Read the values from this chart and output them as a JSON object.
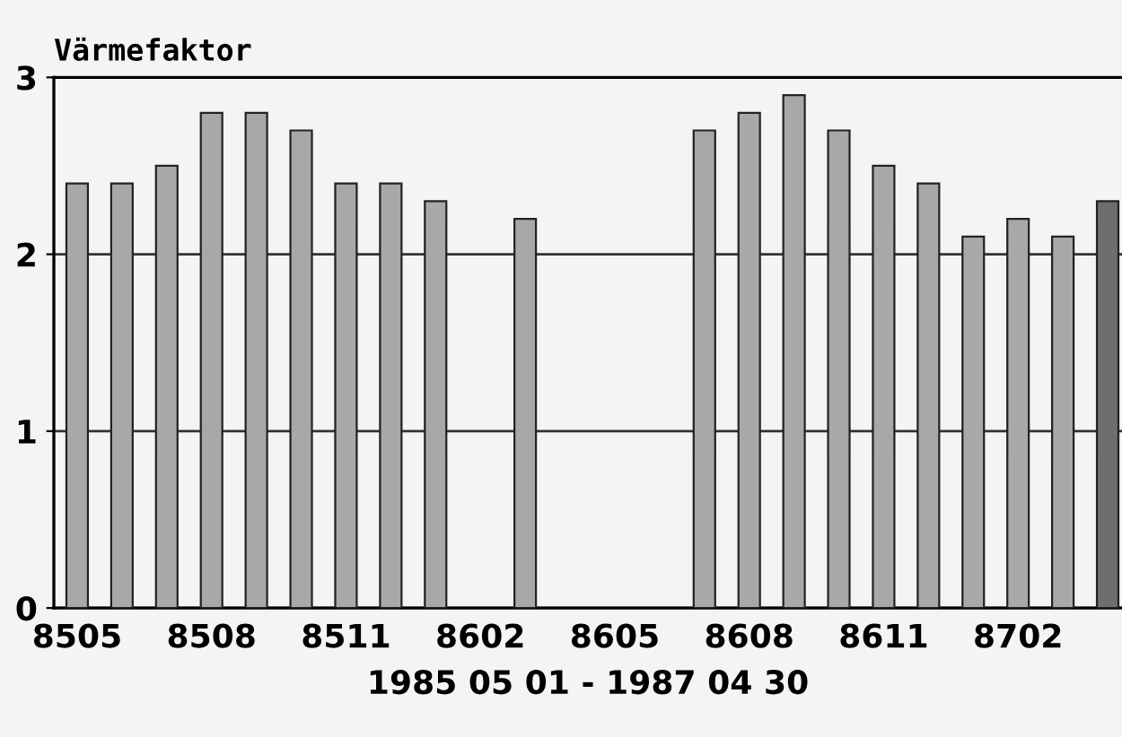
{
  "chart_data": {
    "type": "bar",
    "ylabel": "Värmefaktor",
    "xlabel": "1985 05 01 - 1987 04 30",
    "categories": [
      "8505",
      null,
      null,
      "8508",
      null,
      null,
      "8511",
      null,
      null,
      "8602",
      null,
      null,
      "8605",
      null,
      null,
      "8608",
      null,
      null,
      "8611",
      null,
      null,
      "8702",
      null,
      null
    ],
    "values": [
      2.4,
      2.4,
      2.5,
      2.8,
      2.8,
      2.7,
      2.4,
      2.4,
      2.3,
      null,
      2.2,
      null,
      null,
      null,
      2.7,
      2.8,
      2.9,
      2.7,
      2.5,
      2.4,
      2.1,
      2.2,
      2.1,
      2.3
    ],
    "colors": [
      "#a8a8a8",
      "#a8a8a8",
      "#a8a8a8",
      "#a8a8a8",
      "#a8a8a8",
      "#a8a8a8",
      "#a8a8a8",
      "#a8a8a8",
      "#a8a8a8",
      "#a8a8a8",
      "#a8a8a8",
      "#a8a8a8",
      "#a8a8a8",
      "#a8a8a8",
      "#a8a8a8",
      "#a8a8a8",
      "#a8a8a8",
      "#a8a8a8",
      "#a8a8a8",
      "#a8a8a8",
      "#a8a8a8",
      "#a8a8a8",
      "#a8a8a8",
      "#6e6e6e"
    ],
    "ylim": [
      0,
      3
    ],
    "yticks": [
      0,
      1,
      2,
      3
    ],
    "grid": "y",
    "legend": false
  }
}
